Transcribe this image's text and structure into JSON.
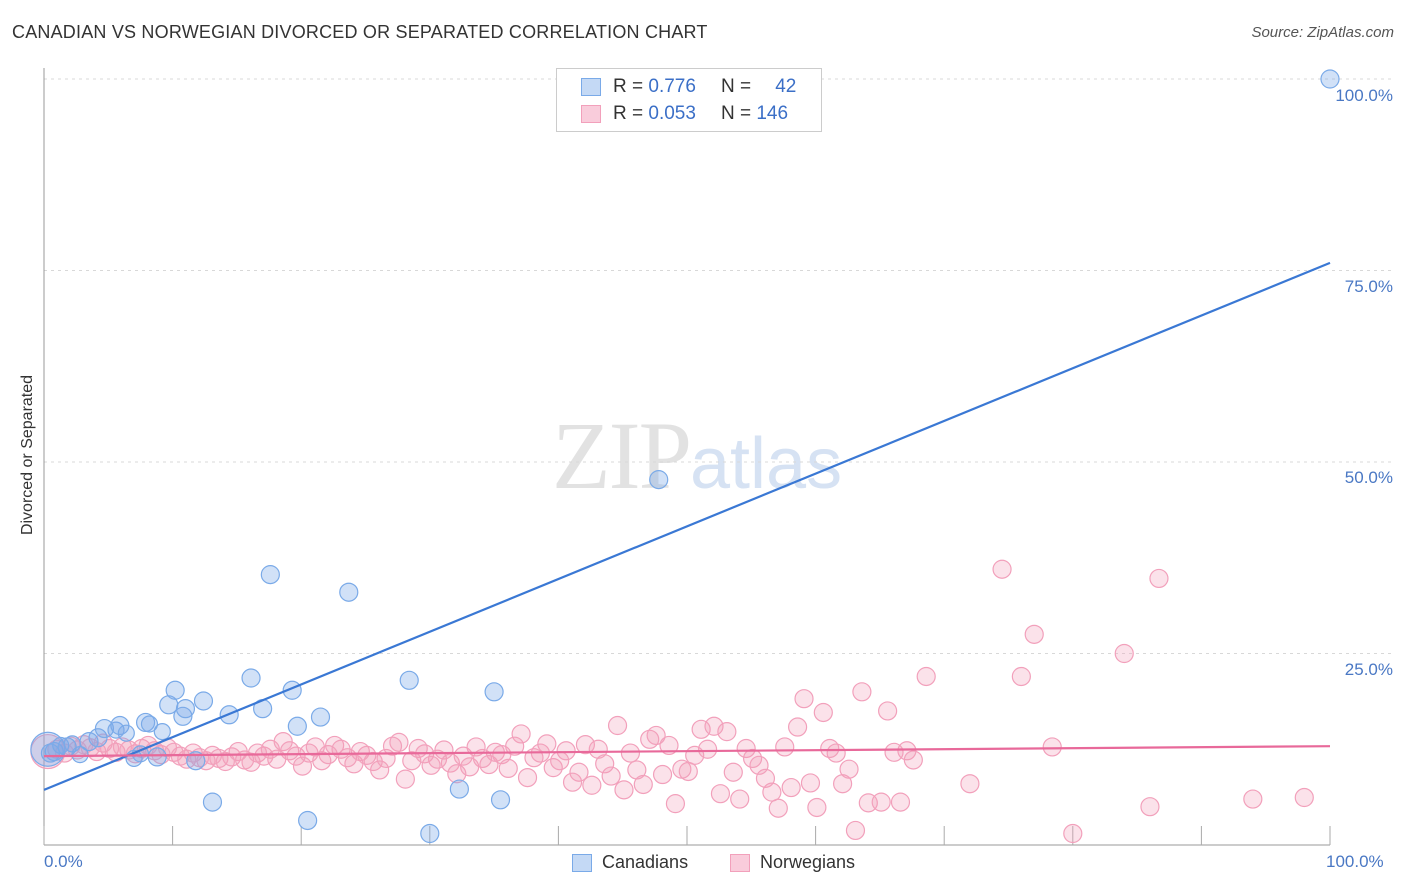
{
  "title": "CANADIAN VS NORWEGIAN DIVORCED OR SEPARATED CORRELATION CHART",
  "source": "Source: ZipAtlas.com",
  "watermark": {
    "zip": "ZIP",
    "atlas": "atlas"
  },
  "legend": {
    "r_label": "R =",
    "n_label": "N =",
    "rows": [
      {
        "r": "0.776",
        "n": "42",
        "color": "#7aaae8"
      },
      {
        "r": "0.053",
        "n": "146",
        "color": "#f2a0bb"
      }
    ]
  },
  "bottom_legend": [
    {
      "label": "Canadians",
      "color": "#7aaae8"
    },
    {
      "label": "Norwegians",
      "color": "#f2a0bb"
    }
  ],
  "chart_data": {
    "type": "scatter",
    "title": "CANADIAN VS NORWEGIAN DIVORCED OR SEPARATED CORRELATION CHART",
    "xlabel": "",
    "ylabel": "Divorced or Separated",
    "xlim": [
      0,
      100
    ],
    "ylim": [
      0,
      102
    ],
    "x_tick_labels": [
      "0.0%",
      "100.0%"
    ],
    "y_ticks": [
      25,
      50,
      75,
      100
    ],
    "y_tick_labels": [
      "25.0%",
      "50.0%",
      "75.0%",
      "100.0%"
    ],
    "grid": true,
    "legend_position": "top-center",
    "series": [
      {
        "name": "Canadians",
        "color": "#7aaae8",
        "line_color": "#3a78d4",
        "trend": {
          "x": [
            0,
            100
          ],
          "y": [
            7.2,
            76
          ]
        },
        "points": [
          [
            0.3,
            12.5,
            16
          ],
          [
            0.8,
            12.2,
            8
          ],
          [
            1.3,
            13.0,
            7
          ],
          [
            1.8,
            12.8,
            8
          ],
          [
            2.2,
            13.2,
            7
          ],
          [
            2.8,
            11.8,
            7
          ],
          [
            3.5,
            13.5,
            8
          ],
          [
            4.2,
            14.0,
            8
          ],
          [
            4.7,
            15.2,
            8
          ],
          [
            5.6,
            15.0,
            7
          ],
          [
            5.9,
            15.6,
            8
          ],
          [
            6.4,
            14.6,
            7
          ],
          [
            7.0,
            11.3,
            7
          ],
          [
            7.5,
            11.9,
            7
          ],
          [
            7.9,
            16.0,
            8
          ],
          [
            8.2,
            15.8,
            7
          ],
          [
            8.8,
            11.5,
            8
          ],
          [
            9.2,
            14.8,
            7
          ],
          [
            9.7,
            18.3,
            8
          ],
          [
            10.2,
            20.2,
            8
          ],
          [
            10.8,
            16.8,
            8
          ],
          [
            11.0,
            17.8,
            8
          ],
          [
            11.8,
            11.0,
            8
          ],
          [
            12.4,
            18.8,
            8
          ],
          [
            13.1,
            5.6,
            8
          ],
          [
            14.4,
            17.0,
            8
          ],
          [
            16.1,
            21.8,
            8
          ],
          [
            17.0,
            17.8,
            8
          ],
          [
            17.6,
            35.3,
            8
          ],
          [
            19.3,
            20.2,
            8
          ],
          [
            19.7,
            15.5,
            8
          ],
          [
            20.5,
            3.2,
            8
          ],
          [
            21.5,
            16.7,
            8
          ],
          [
            23.7,
            33.0,
            8
          ],
          [
            28.4,
            21.5,
            8
          ],
          [
            30.0,
            1.5,
            8
          ],
          [
            32.3,
            7.3,
            8
          ],
          [
            35.0,
            20.0,
            8
          ],
          [
            35.5,
            5.9,
            8
          ],
          [
            47.8,
            47.7,
            8
          ],
          [
            100.0,
            100.0,
            8
          ],
          [
            0.5,
            12.0,
            8
          ]
        ]
      },
      {
        "name": "Norwegians",
        "color": "#f2a0bb",
        "line_color": "#e8699a",
        "trend": {
          "x": [
            0,
            100
          ],
          "y": [
            11.6,
            12.9
          ]
        },
        "points": [
          [
            0.3,
            12.2,
            16
          ],
          [
            1.0,
            12.5,
            8
          ],
          [
            1.6,
            12.0,
            8
          ],
          [
            2.1,
            12.9,
            8
          ],
          [
            2.6,
            12.4,
            8
          ],
          [
            3.1,
            13.1,
            8
          ],
          [
            3.6,
            12.7,
            8
          ],
          [
            4.1,
            12.2,
            8
          ],
          [
            4.6,
            13.3,
            8
          ],
          [
            5.1,
            12.6,
            8
          ],
          [
            5.6,
            12.1,
            8
          ],
          [
            6.1,
            12.8,
            8
          ],
          [
            6.6,
            12.4,
            8
          ],
          [
            7.1,
            11.9,
            8
          ],
          [
            7.6,
            12.6,
            8
          ],
          [
            8.1,
            13.0,
            8
          ],
          [
            8.6,
            12.3,
            8
          ],
          [
            9.1,
            11.8,
            8
          ],
          [
            9.6,
            12.7,
            8
          ],
          [
            10.1,
            12.1,
            8
          ],
          [
            10.6,
            11.6,
            8
          ],
          [
            11.1,
            11.2,
            8
          ],
          [
            11.6,
            12.0,
            8
          ],
          [
            12.1,
            11.4,
            8
          ],
          [
            12.6,
            11.0,
            8
          ],
          [
            13.1,
            11.7,
            8
          ],
          [
            13.6,
            11.3,
            8
          ],
          [
            14.1,
            10.9,
            8
          ],
          [
            14.6,
            11.5,
            8
          ],
          [
            15.1,
            12.2,
            8
          ],
          [
            15.6,
            11.1,
            8
          ],
          [
            16.1,
            10.8,
            8
          ],
          [
            16.6,
            12.0,
            8
          ],
          [
            17.1,
            11.6,
            8
          ],
          [
            17.6,
            12.5,
            8
          ],
          [
            18.1,
            11.2,
            8
          ],
          [
            18.6,
            13.5,
            8
          ],
          [
            19.1,
            12.3,
            8
          ],
          [
            19.6,
            11.6,
            8
          ],
          [
            20.1,
            10.3,
            8
          ],
          [
            20.6,
            12.0,
            8
          ],
          [
            21.1,
            12.8,
            8
          ],
          [
            21.6,
            11.0,
            8
          ],
          [
            22.1,
            11.8,
            8
          ],
          [
            22.6,
            13.0,
            8
          ],
          [
            23.1,
            12.5,
            8
          ],
          [
            23.6,
            11.4,
            8
          ],
          [
            24.1,
            10.6,
            8
          ],
          [
            24.6,
            12.2,
            8
          ],
          [
            25.1,
            11.7,
            8
          ],
          [
            25.6,
            10.9,
            8
          ],
          [
            26.1,
            9.8,
            8
          ],
          [
            26.6,
            11.3,
            8
          ],
          [
            27.1,
            12.9,
            8
          ],
          [
            27.6,
            13.4,
            8
          ],
          [
            28.1,
            8.6,
            8
          ],
          [
            28.6,
            11.0,
            8
          ],
          [
            29.1,
            12.6,
            8
          ],
          [
            29.6,
            11.9,
            8
          ],
          [
            30.1,
            10.4,
            8
          ],
          [
            30.6,
            11.2,
            8
          ],
          [
            31.1,
            12.4,
            8
          ],
          [
            31.6,
            10.7,
            8
          ],
          [
            32.1,
            9.3,
            8
          ],
          [
            32.6,
            11.6,
            8
          ],
          [
            33.1,
            10.2,
            8
          ],
          [
            33.6,
            12.8,
            8
          ],
          [
            34.1,
            11.3,
            8
          ],
          [
            34.6,
            10.5,
            8
          ],
          [
            35.1,
            12.1,
            8
          ],
          [
            35.6,
            11.8,
            8
          ],
          [
            36.1,
            10.0,
            8
          ],
          [
            36.6,
            12.9,
            8
          ],
          [
            37.1,
            14.5,
            8
          ],
          [
            37.6,
            8.8,
            8
          ],
          [
            38.1,
            11.4,
            8
          ],
          [
            38.6,
            12.0,
            8
          ],
          [
            39.1,
            13.2,
            8
          ],
          [
            39.6,
            10.1,
            8
          ],
          [
            40.1,
            11.0,
            8
          ],
          [
            40.6,
            12.3,
            8
          ],
          [
            41.1,
            8.2,
            8
          ],
          [
            41.6,
            9.5,
            8
          ],
          [
            42.1,
            13.1,
            8
          ],
          [
            42.6,
            7.8,
            8
          ],
          [
            43.1,
            12.5,
            8
          ],
          [
            43.6,
            10.6,
            8
          ],
          [
            44.1,
            9.0,
            8
          ],
          [
            44.6,
            15.6,
            8
          ],
          [
            45.1,
            7.2,
            8
          ],
          [
            45.6,
            12.0,
            8
          ],
          [
            46.1,
            9.8,
            8
          ],
          [
            46.6,
            7.9,
            8
          ],
          [
            47.1,
            13.8,
            8
          ],
          [
            47.6,
            14.3,
            8
          ],
          [
            48.1,
            9.2,
            8
          ],
          [
            48.6,
            13.0,
            8
          ],
          [
            49.1,
            5.4,
            8
          ],
          [
            49.6,
            9.9,
            8
          ],
          [
            50.1,
            9.6,
            8
          ],
          [
            50.6,
            11.7,
            8
          ],
          [
            51.1,
            15.1,
            8
          ],
          [
            51.6,
            12.5,
            8
          ],
          [
            52.1,
            15.5,
            8
          ],
          [
            52.6,
            6.7,
            8
          ],
          [
            53.1,
            14.8,
            8
          ],
          [
            53.6,
            9.5,
            8
          ],
          [
            54.1,
            6.0,
            8
          ],
          [
            54.6,
            12.6,
            8
          ],
          [
            55.1,
            11.3,
            8
          ],
          [
            55.6,
            10.4,
            8
          ],
          [
            56.1,
            8.7,
            8
          ],
          [
            56.6,
            6.9,
            8
          ],
          [
            57.1,
            4.8,
            8
          ],
          [
            57.6,
            12.8,
            8
          ],
          [
            58.1,
            7.5,
            8
          ],
          [
            58.6,
            15.4,
            8
          ],
          [
            59.1,
            19.1,
            8
          ],
          [
            59.6,
            8.1,
            8
          ],
          [
            60.1,
            4.9,
            8
          ],
          [
            60.6,
            17.3,
            8
          ],
          [
            61.1,
            12.6,
            8
          ],
          [
            61.6,
            12.0,
            8
          ],
          [
            62.1,
            8.0,
            8
          ],
          [
            62.6,
            9.9,
            8
          ],
          [
            63.1,
            1.9,
            8
          ],
          [
            63.6,
            20.0,
            8
          ],
          [
            64.1,
            5.5,
            8
          ],
          [
            65.1,
            5.6,
            8
          ],
          [
            65.6,
            17.5,
            8
          ],
          [
            66.1,
            12.1,
            8
          ],
          [
            66.6,
            5.6,
            8
          ],
          [
            67.1,
            12.3,
            8
          ],
          [
            67.6,
            11.1,
            8
          ],
          [
            68.6,
            22.0,
            8
          ],
          [
            72.0,
            8.0,
            8
          ],
          [
            74.5,
            36.0,
            8
          ],
          [
            76.0,
            22.0,
            8
          ],
          [
            77.0,
            27.5,
            8
          ],
          [
            78.4,
            12.8,
            8
          ],
          [
            80.0,
            1.5,
            8
          ],
          [
            84.0,
            25.0,
            8
          ],
          [
            86.0,
            5.0,
            8
          ],
          [
            86.7,
            34.8,
            8
          ],
          [
            94.0,
            6.0,
            8
          ],
          [
            98.0,
            6.2,
            8
          ]
        ]
      }
    ]
  }
}
